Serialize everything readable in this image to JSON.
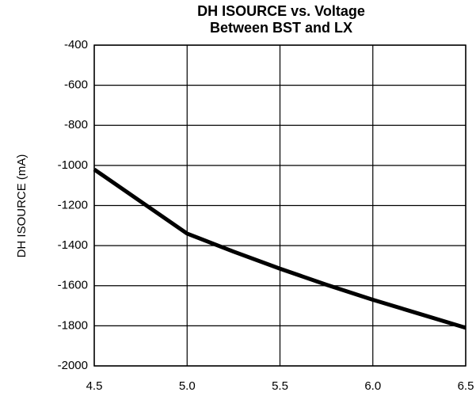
{
  "chart_data": {
    "type": "line",
    "title": [
      "DH ISOURCE vs. Voltage",
      "Between BST and LX"
    ],
    "y_label": "DH ISOURCE (mA)",
    "x": [
      4.5,
      5.0,
      5.25,
      5.5,
      5.75,
      6.0,
      6.25,
      6.5
    ],
    "series": [
      {
        "color": "#000000",
        "values": [
          -1020,
          -1340,
          -1430,
          -1515,
          -1595,
          -1670,
          -1740,
          -1810
        ]
      }
    ],
    "xlim": [
      4.5,
      6.5
    ],
    "xticks": [
      4.5,
      {
        "value": 5.0,
        "label": "5.0"
      },
      5.5,
      {
        "value": 6.0,
        "label": "6.0"
      },
      6.5
    ],
    "ylim": [
      -2000,
      -400
    ],
    "yticks": [
      -2000,
      -1800,
      -1600,
      -1400,
      -1200,
      -1000,
      -800,
      -600,
      -400
    ],
    "grid": true
  }
}
